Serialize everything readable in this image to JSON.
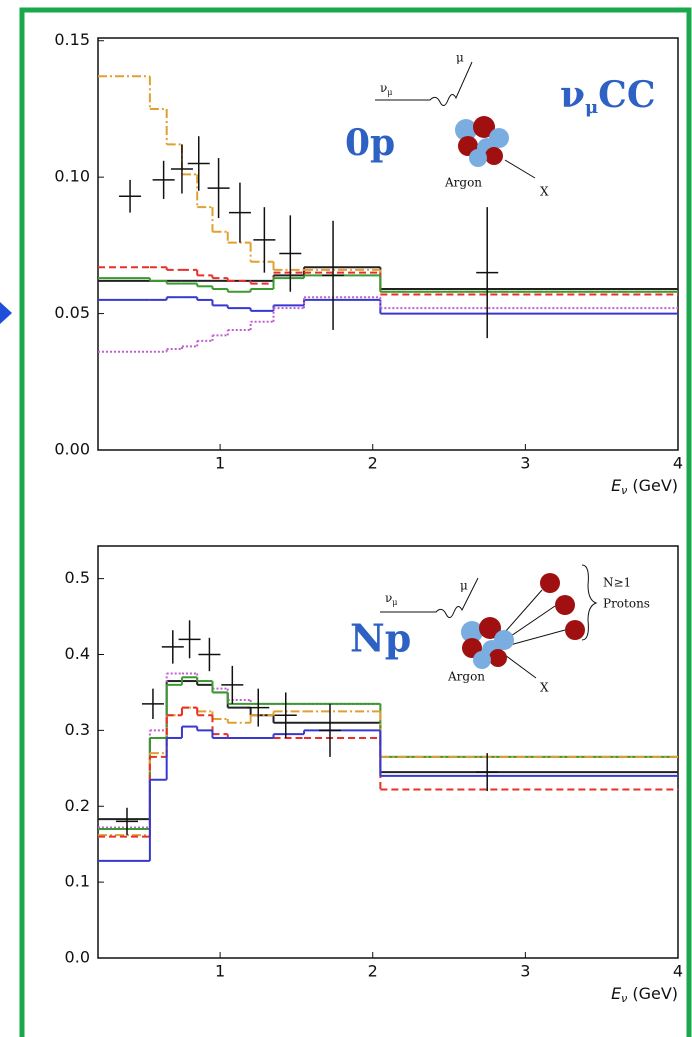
{
  "chart_data": [
    {
      "type": "histogram",
      "label": "0p",
      "process": {
        "particle": "ν",
        "sub": "μ",
        "rest": "CC"
      },
      "diagram": {
        "incoming": "ν",
        "incoming_sub": "μ",
        "outgoing": "μ",
        "target": "Argon",
        "remnant": "X"
      },
      "xlabel": {
        "symbol": "E",
        "sub": "ν",
        "unit": "(GeV)"
      },
      "xlim": [
        0.2,
        4
      ],
      "ylim": [
        0,
        0.151
      ],
      "xticks": [
        1,
        2,
        3,
        4
      ],
      "yticks": [
        {
          "value": 0,
          "label": "0.00"
        },
        0.05,
        {
          "value": 0.1,
          "label": "0.10"
        },
        0.15
      ],
      "bins": [
        0.2,
        0.54,
        0.65,
        0.75,
        0.85,
        0.95,
        1.05,
        1.2,
        1.35,
        1.55,
        2.05,
        4.0
      ],
      "series": [
        {
          "color": "#222222",
          "style": "solid",
          "values": [
            0.062,
            0.062,
            0.062,
            0.062,
            0.062,
            0.062,
            0.062,
            0.062,
            0.064,
            0.067,
            0.059
          ]
        },
        {
          "color": "#e0a030",
          "style": "dashdot",
          "values": [
            0.137,
            0.125,
            0.112,
            0.101,
            0.089,
            0.08,
            0.076,
            0.069,
            0.066,
            0.066,
            0.058
          ]
        },
        {
          "color": "#e8302a",
          "style": "dashed",
          "values": [
            0.067,
            0.067,
            0.066,
            0.066,
            0.064,
            0.063,
            0.062,
            0.061,
            0.065,
            0.065,
            0.057
          ]
        },
        {
          "color": "#3a9a30",
          "style": "solid",
          "values": [
            0.063,
            0.062,
            0.061,
            0.061,
            0.06,
            0.059,
            0.058,
            0.059,
            0.063,
            0.064,
            0.058
          ]
        },
        {
          "color": "#3838d0",
          "style": "solid",
          "values": [
            0.055,
            0.055,
            0.056,
            0.056,
            0.055,
            0.053,
            0.052,
            0.051,
            0.053,
            0.055,
            0.05
          ]
        },
        {
          "color": "#c060d0",
          "style": "dotted",
          "values": [
            0.036,
            0.036,
            0.037,
            0.038,
            0.04,
            0.042,
            0.044,
            0.047,
            0.052,
            0.056,
            0.052
          ]
        }
      ],
      "points": {
        "color": "#111111",
        "x": [
          0.41,
          0.63,
          0.75,
          0.86,
          0.99,
          1.13,
          1.29,
          1.46,
          1.74,
          2.75
        ],
        "values": [
          0.093,
          0.099,
          0.103,
          0.105,
          0.096,
          0.087,
          0.077,
          0.072,
          0.064,
          0.065
        ],
        "errors": [
          0.006,
          0.007,
          0.009,
          0.01,
          0.011,
          0.011,
          0.012,
          0.014,
          0.02,
          0.024
        ]
      }
    },
    {
      "type": "histogram",
      "label": "Np",
      "diagram": {
        "incoming": "ν",
        "incoming_sub": "μ",
        "outgoing": "μ",
        "target": "Argon",
        "remnant": "X",
        "count": "N≥1",
        "protons": "Protons"
      },
      "xlabel": {
        "symbol": "E",
        "sub": "ν",
        "unit": "(GeV)"
      },
      "xlim": [
        0.2,
        4
      ],
      "ylim": [
        0,
        0.543
      ],
      "xticks": [
        1,
        2,
        3,
        4
      ],
      "yticks": [
        {
          "value": 0,
          "label": "0.0"
        },
        0.1,
        0.2,
        0.3,
        0.4,
        0.5
      ],
      "bins": [
        0.2,
        0.54,
        0.65,
        0.75,
        0.85,
        0.95,
        1.05,
        1.2,
        1.35,
        1.55,
        2.05,
        4.0
      ],
      "series": [
        {
          "color": "#222222",
          "style": "solid",
          "values": [
            0.183,
            0.29,
            0.365,
            0.365,
            0.36,
            0.35,
            0.33,
            0.32,
            0.31,
            0.31,
            0.245
          ]
        },
        {
          "color": "#c060d0",
          "style": "dotted",
          "values": [
            0.172,
            0.3,
            0.375,
            0.375,
            0.365,
            0.355,
            0.34,
            0.335,
            0.335,
            0.335,
            0.265
          ]
        },
        {
          "color": "#3a9a30",
          "style": "solid",
          "values": [
            0.17,
            0.29,
            0.36,
            0.37,
            0.365,
            0.35,
            0.335,
            0.335,
            0.335,
            0.335,
            0.265
          ]
        },
        {
          "color": "#e0a030",
          "style": "dashdot",
          "values": [
            0.162,
            0.27,
            0.32,
            0.33,
            0.325,
            0.315,
            0.31,
            0.32,
            0.325,
            0.325,
            0.265
          ]
        },
        {
          "color": "#e8302a",
          "style": "dashed",
          "values": [
            0.16,
            0.265,
            0.32,
            0.33,
            0.32,
            0.295,
            0.29,
            0.29,
            0.29,
            0.29,
            0.222
          ]
        },
        {
          "color": "#3838d0",
          "style": "solid",
          "values": [
            0.128,
            0.235,
            0.29,
            0.305,
            0.3,
            0.29,
            0.29,
            0.29,
            0.295,
            0.3,
            0.24
          ]
        }
      ],
      "points": {
        "color": "#111111",
        "x": [
          0.39,
          0.56,
          0.69,
          0.8,
          0.93,
          1.08,
          1.25,
          1.43,
          1.72,
          2.75
        ],
        "values": [
          0.18,
          0.335,
          0.41,
          0.42,
          0.4,
          0.36,
          0.33,
          0.32,
          0.3,
          0.245
        ],
        "errors": [
          0.018,
          0.02,
          0.022,
          0.025,
          0.022,
          0.025,
          0.025,
          0.03,
          0.035,
          0.025
        ]
      }
    }
  ]
}
